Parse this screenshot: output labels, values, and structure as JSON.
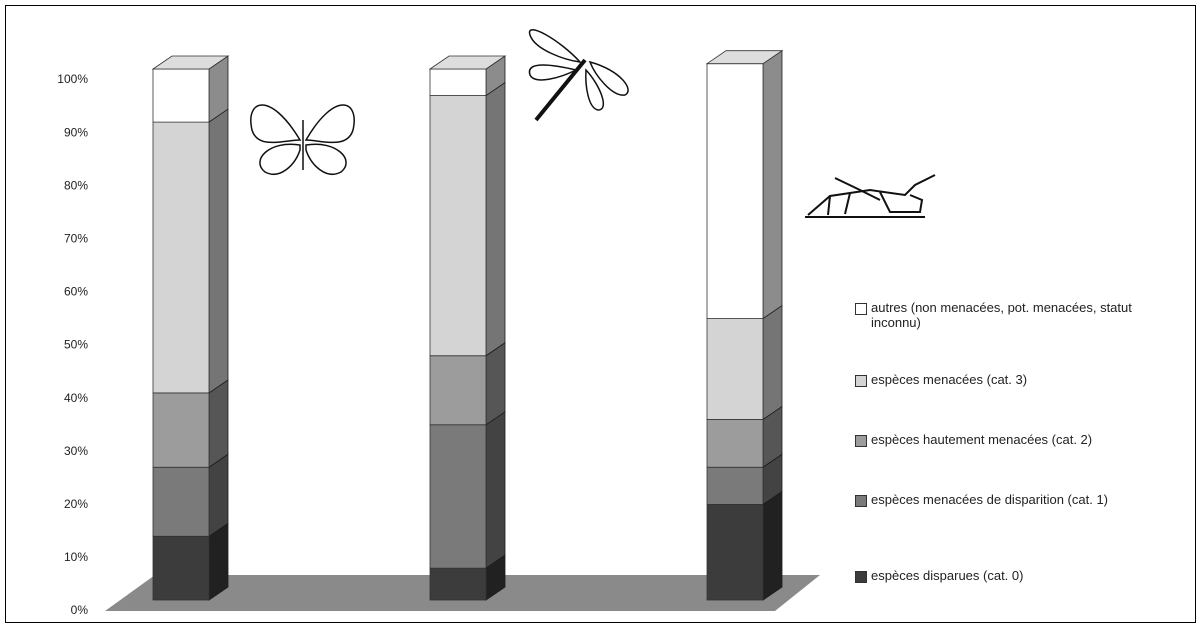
{
  "chart_data": {
    "type": "stacked-bar-3d",
    "categories": [
      null,
      null,
      null
    ],
    "ylim": [
      0,
      100
    ],
    "yticks": [
      {
        "value": 0,
        "label": "0%"
      },
      {
        "value": 10,
        "label": "10%"
      },
      {
        "value": 20,
        "label": "20%"
      },
      {
        "value": 30,
        "label": "30%"
      },
      {
        "value": 40,
        "label": "40%"
      },
      {
        "value": 50,
        "label": "50%"
      },
      {
        "value": 60,
        "label": "60%"
      },
      {
        "value": 70,
        "label": "70%"
      },
      {
        "value": 80,
        "label": "80%"
      },
      {
        "value": 90,
        "label": "90%"
      },
      {
        "value": 100,
        "label": "100%"
      }
    ],
    "series": [
      {
        "name": "espèces disparues (cat. 0)",
        "color": "#3c3c3c",
        "values": [
          12,
          6,
          18
        ]
      },
      {
        "name": "espèces menacées de disparition (cat. 1)",
        "color": "#7a7a7a",
        "values": [
          13,
          27,
          7
        ]
      },
      {
        "name": "espèces hautement menacées (cat. 2)",
        "color": "#9c9c9c",
        "values": [
          14,
          13,
          9
        ]
      },
      {
        "name": "espèces menacées (cat. 3)",
        "color": "#d4d4d4",
        "values": [
          51,
          49,
          19
        ]
      },
      {
        "name": "autres (non menacées, pot. menacées, statut inconnu)",
        "color": "#ffffff",
        "values": [
          10,
          5,
          48
        ]
      }
    ]
  }
}
